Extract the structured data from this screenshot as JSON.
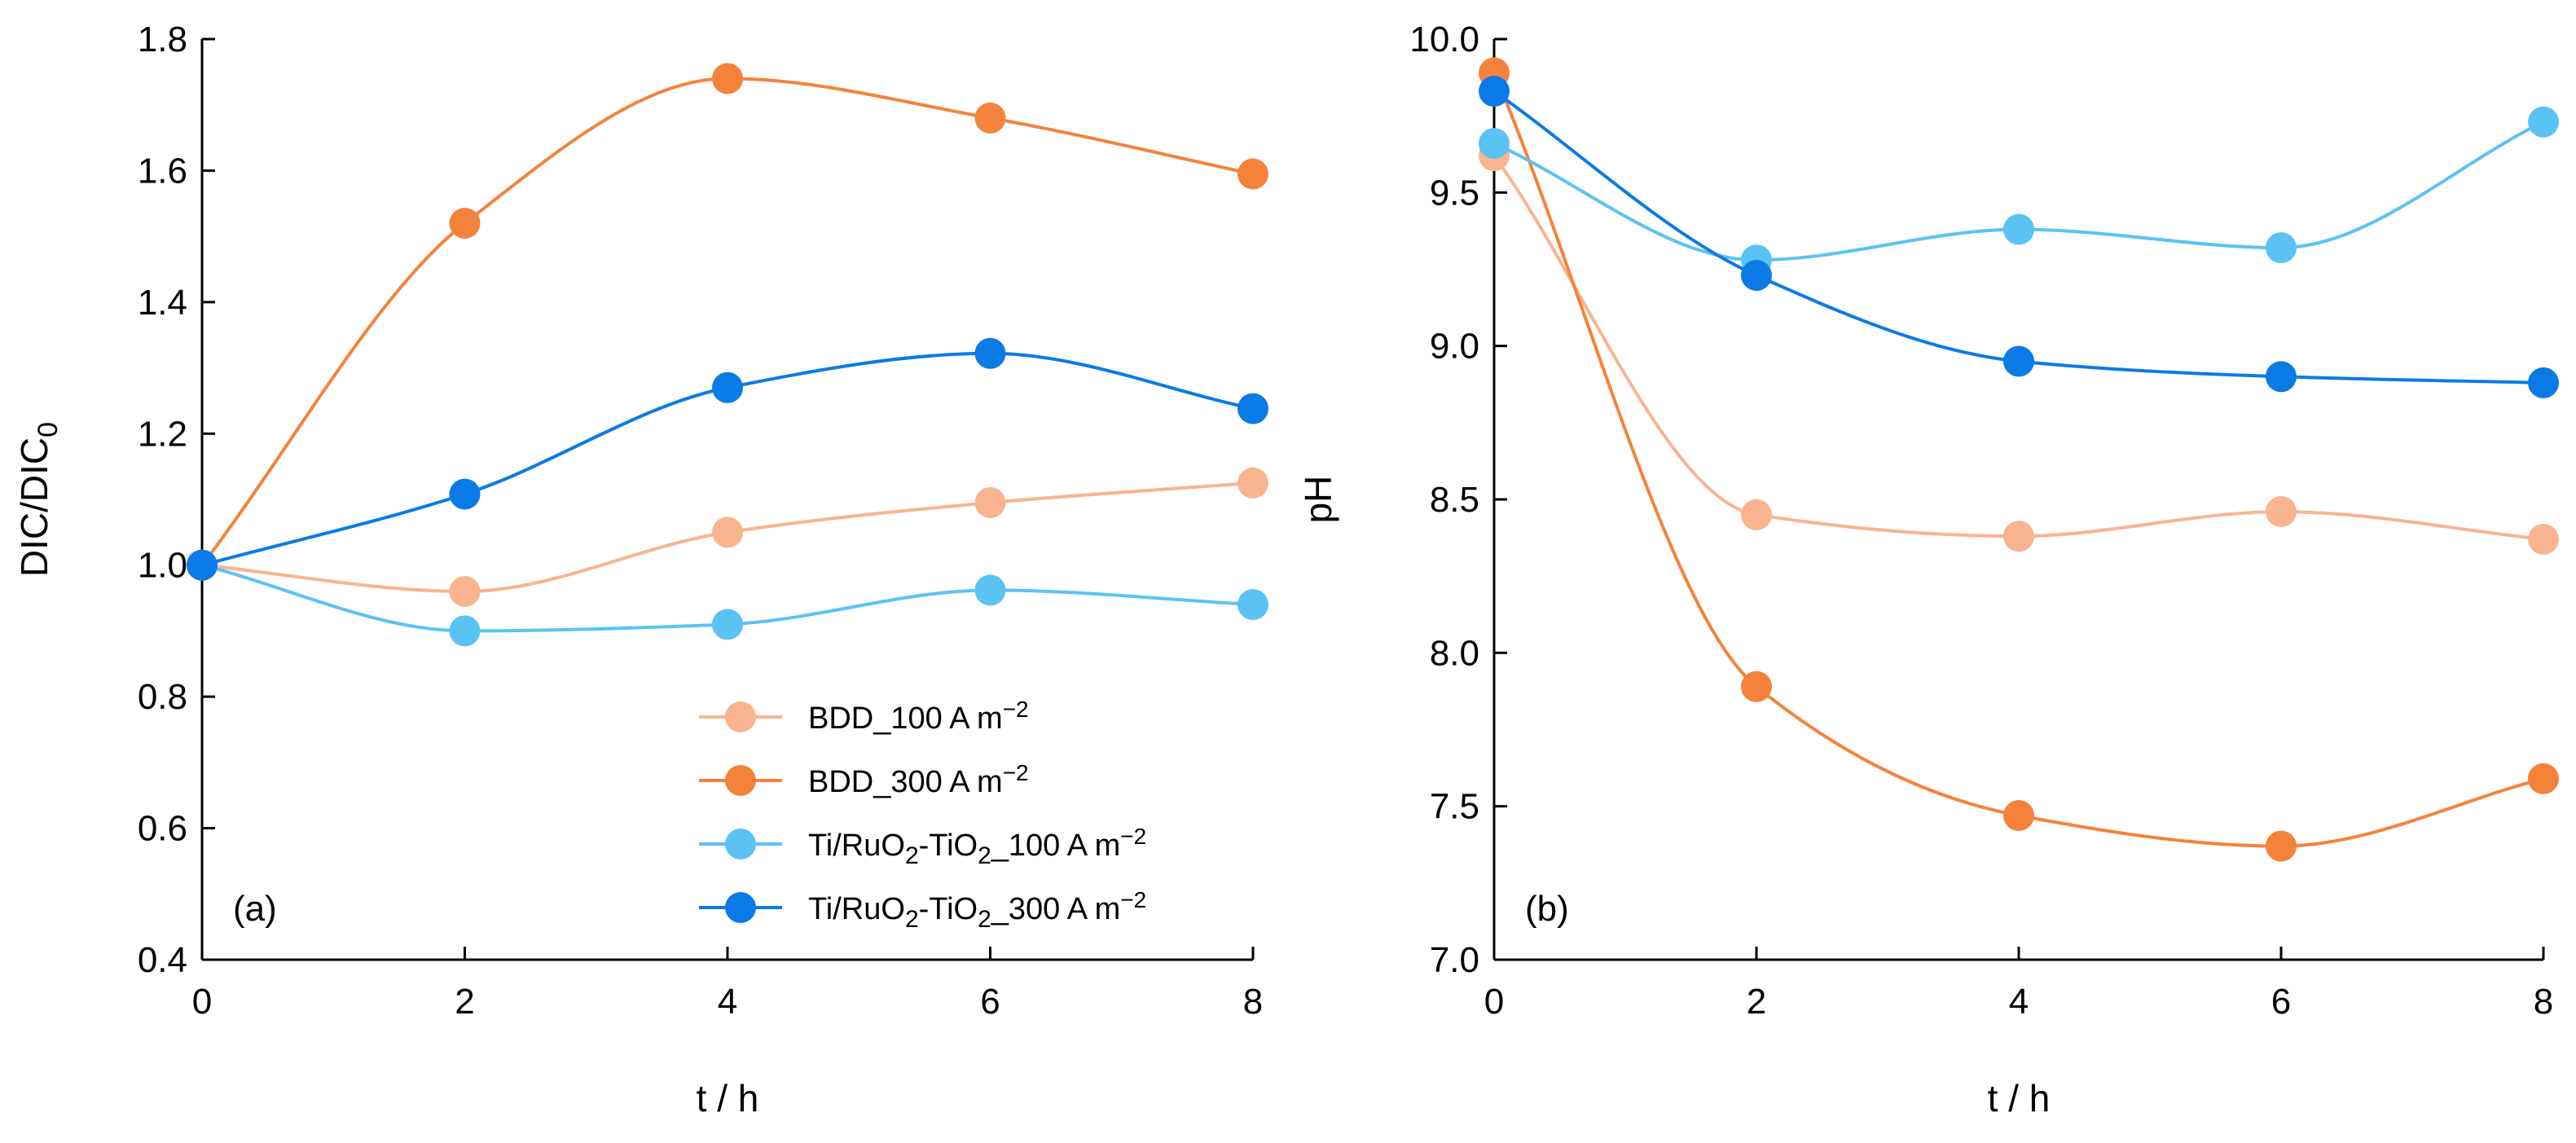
{
  "chart_data": [
    {
      "type": "line",
      "panel_label": "(a)",
      "xlabel": "t / h",
      "ylabel": {
        "main": "DIC/DIC",
        "sub": "0"
      },
      "xlim": [
        0,
        8
      ],
      "ylim": [
        0.4,
        1.8
      ],
      "xticks": [
        "0",
        "2",
        "4",
        "6",
        "8"
      ],
      "yticks": [
        "0.4",
        "0.6",
        "0.8",
        "1.0",
        "1.2",
        "1.4",
        "1.6",
        "1.8"
      ],
      "x": [
        0,
        2,
        4,
        6,
        8
      ],
      "series": [
        {
          "key": "bdd100",
          "name": "BDD_100 A m−2",
          "color": "#F9B48F",
          "values": [
            1.0,
            0.96,
            1.05,
            1.095,
            1.125
          ]
        },
        {
          "key": "bdd300",
          "name": "BDD_300 A m−2",
          "color": "#F5823A",
          "values": [
            1.0,
            1.52,
            1.74,
            1.68,
            1.595
          ]
        },
        {
          "key": "ti100",
          "name": "Ti/RuO2-TiO2_100 A m−2",
          "color": "#5BC2F4",
          "values": [
            1.0,
            0.9,
            0.91,
            0.962,
            0.94
          ]
        },
        {
          "key": "ti300",
          "name": "Ti/RuO2-TiO2_300 A m−2",
          "color": "#0A7BE6",
          "values": [
            1.0,
            1.108,
            1.27,
            1.322,
            1.238
          ]
        }
      ]
    },
    {
      "type": "line",
      "panel_label": "(b)",
      "xlabel": "t / h",
      "ylabel": {
        "main": "pH",
        "sub": ""
      },
      "xlim": [
        0,
        8
      ],
      "ylim": [
        7.0,
        10.0
      ],
      "xticks": [
        "0",
        "2",
        "4",
        "6",
        "8"
      ],
      "yticks": [
        "7.0",
        "7.5",
        "8.0",
        "8.5",
        "9.0",
        "9.5",
        "10.0"
      ],
      "x": [
        0,
        2,
        4,
        6,
        8
      ],
      "series": [
        {
          "key": "bdd100",
          "name": "BDD_100 A m−2",
          "color": "#F9B48F",
          "values": [
            9.62,
            8.45,
            8.38,
            8.46,
            8.37
          ]
        },
        {
          "key": "bdd300",
          "name": "BDD_300 A m−2",
          "color": "#F5823A",
          "values": [
            9.89,
            7.89,
            7.47,
            7.37,
            7.59
          ]
        },
        {
          "key": "ti100",
          "name": "Ti/RuO2-TiO2_100 A m−2",
          "color": "#5BC2F4",
          "values": [
            9.66,
            9.28,
            9.38,
            9.32,
            9.73
          ]
        },
        {
          "key": "ti300",
          "name": "Ti/RuO2-TiO2_300 A m−2",
          "color": "#0A7BE6",
          "values": [
            9.83,
            9.23,
            8.95,
            8.9,
            8.88
          ]
        }
      ]
    }
  ],
  "legend": {
    "entries": [
      {
        "key": "bdd100",
        "color": "#F9B48F",
        "parts": [
          [
            "BDD_100 A m",
            ""
          ],
          [
            "−2",
            "sup"
          ]
        ]
      },
      {
        "key": "bdd300",
        "color": "#F5823A",
        "parts": [
          [
            "BDD_300 A m",
            ""
          ],
          [
            "−2",
            "sup"
          ]
        ]
      },
      {
        "key": "ti100",
        "color": "#5BC2F4",
        "parts": [
          [
            "Ti/RuO",
            ""
          ],
          [
            "2",
            "sub"
          ],
          [
            "-TiO",
            ""
          ],
          [
            "2",
            "sub"
          ],
          [
            "_100 A m",
            ""
          ],
          [
            "−2",
            "sup"
          ]
        ]
      },
      {
        "key": "ti300",
        "color": "#0A7BE6",
        "parts": [
          [
            "Ti/RuO",
            ""
          ],
          [
            "2",
            "sub"
          ],
          [
            "-TiO",
            ""
          ],
          [
            "2",
            "sub"
          ],
          [
            "_300 A m",
            ""
          ],
          [
            "−2",
            "sup"
          ]
        ]
      }
    ]
  }
}
